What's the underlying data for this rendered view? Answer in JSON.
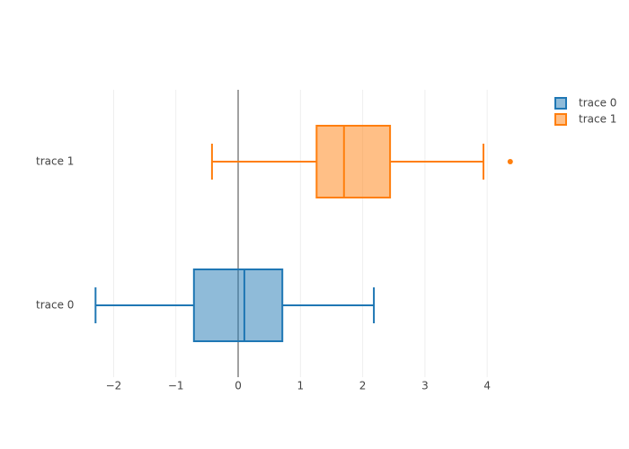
{
  "chart_data": {
    "type": "box",
    "orientation": "horizontal",
    "series": [
      {
        "name": "trace 0",
        "color": "#1f77b4",
        "min": -2.29,
        "q1": -0.71,
        "median": 0.1,
        "q3": 0.71,
        "max": 2.18,
        "outliers": []
      },
      {
        "name": "trace 1",
        "color": "#ff7f0e",
        "min": -0.42,
        "q1": 1.26,
        "median": 1.7,
        "q3": 2.44,
        "max": 3.94,
        "outliers": [
          4.37
        ]
      }
    ],
    "xlim": [
      -2.67,
      4.69
    ],
    "xticks": [
      {
        "value": -2,
        "label": "−2"
      },
      {
        "value": -1,
        "label": "−1"
      },
      0,
      1,
      2,
      3,
      4
    ],
    "grid": true,
    "legend": "top-right"
  }
}
